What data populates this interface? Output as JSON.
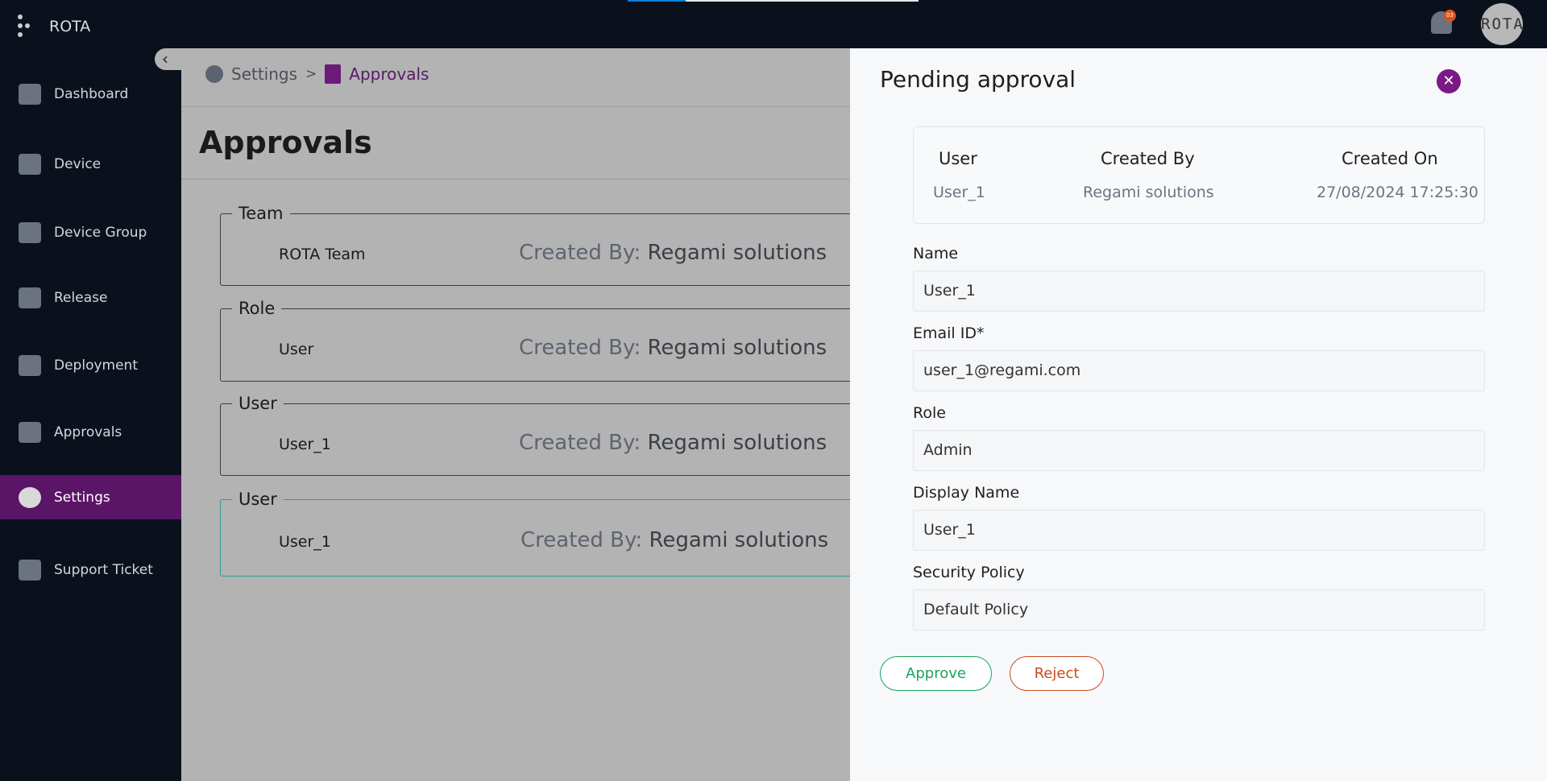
{
  "app": {
    "title": "ROTA",
    "notification_count": "03",
    "avatar_text": "ROTA",
    "loading_progress": 0.2
  },
  "sidebar": {
    "items": [
      {
        "label": "Dashboard",
        "icon": "dashboard-icon"
      },
      {
        "label": "Device",
        "icon": "device-icon"
      },
      {
        "label": "Device Group",
        "icon": "device-group-icon"
      },
      {
        "label": "Release",
        "icon": "release-box-icon"
      },
      {
        "label": "Deployment",
        "icon": "rocket-icon"
      },
      {
        "label": "Approvals",
        "icon": "approvals-icon"
      },
      {
        "label": "Settings",
        "icon": "gear-icon",
        "active": true
      },
      {
        "label": "Support Ticket",
        "icon": "ticket-icon"
      }
    ]
  },
  "breadcrumb": {
    "parent": "Settings",
    "separator": ">",
    "current": "Approvals"
  },
  "page": {
    "title": "Approvals",
    "created_by_label": "Created By:",
    "cards": [
      {
        "type": "Team",
        "name": "ROTA Team",
        "created_by": "Regami solutions"
      },
      {
        "type": "Role",
        "name": "User",
        "created_by": "Regami solutions"
      },
      {
        "type": "User",
        "name": "User_1",
        "created_by": "Regami solutions"
      },
      {
        "type": "User",
        "name": "User_1",
        "created_by": "Regami solutions",
        "selected": true
      }
    ]
  },
  "panel": {
    "title": "Pending approval",
    "summary": {
      "headers": [
        "User",
        "Created By",
        "Created On"
      ],
      "values": [
        "User_1",
        "Regami solutions",
        "27/08/2024 17:25:30"
      ]
    },
    "fields": [
      {
        "label": "Name",
        "value": "User_1"
      },
      {
        "label": "Email ID*",
        "value": "user_1@regami.com"
      },
      {
        "label": "Role",
        "value": "Admin"
      },
      {
        "label": "Display Name",
        "value": "User_1"
      },
      {
        "label": "Security Policy",
        "value": "Default Policy"
      }
    ],
    "approve_label": "Approve",
    "reject_label": "Reject"
  },
  "colors": {
    "accent": "#5b1566",
    "approve": "#1ba260",
    "reject": "#c84b1e",
    "selected_border": "#2a9d8f"
  }
}
